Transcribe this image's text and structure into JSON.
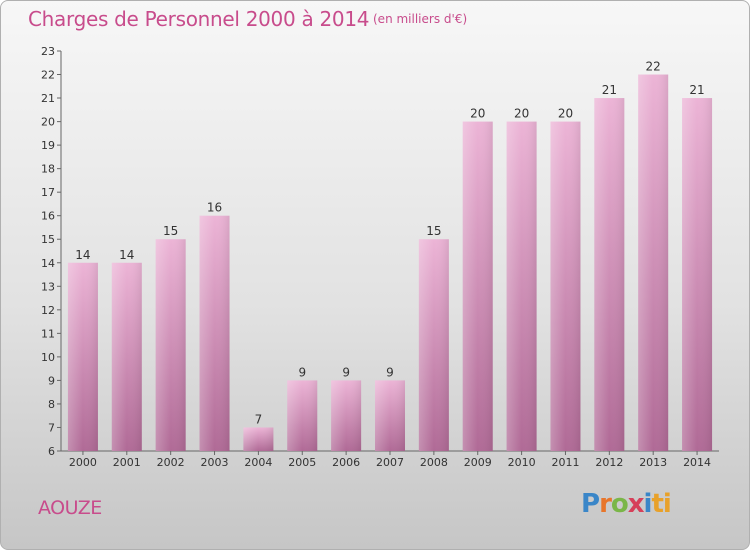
{
  "title": "Charges de Personnel 2000 à 2014",
  "subtitle": "(en milliers d'€)",
  "town": "AOUZE",
  "logo": {
    "letters": [
      "P",
      "r",
      "o",
      "x",
      "i",
      "ti"
    ]
  },
  "colors": {
    "bar_light": "#ecb4d6",
    "bar_dark": "#b06a96",
    "title": "#c84c8c"
  },
  "chart_data": {
    "type": "bar",
    "title": "Charges de Personnel 2000 à 2014",
    "subtitle": "(en milliers d'€)",
    "categories": [
      "2000",
      "2001",
      "2002",
      "2003",
      "2004",
      "2005",
      "2006",
      "2007",
      "2008",
      "2009",
      "2010",
      "2011",
      "2012",
      "2013",
      "2014"
    ],
    "values": [
      14,
      14,
      15,
      16,
      7,
      9,
      9,
      9,
      15,
      20,
      20,
      20,
      21,
      22,
      21
    ],
    "ylim": [
      6,
      23
    ],
    "yticks": [
      6,
      7,
      8,
      9,
      10,
      11,
      12,
      13,
      14,
      15,
      16,
      17,
      18,
      19,
      20,
      21,
      22,
      23
    ],
    "grid": false,
    "xlabel": "",
    "ylabel": ""
  }
}
